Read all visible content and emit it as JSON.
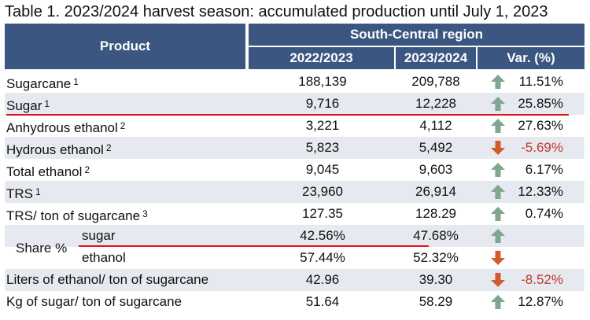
{
  "title": {
    "prefix": "Table 1.",
    "text": "2023/2024 harvest season: accumulated production until July 1, 2023"
  },
  "header": {
    "product": "Product",
    "region": "South-Central region",
    "col_a": "2022/2023",
    "col_b": "2023/2024",
    "col_var": "Var. (%)"
  },
  "share_label": "Share %",
  "colors": {
    "header_bg": "#3b5680",
    "up_arrow": "#7fa68f",
    "down_arrow": "#d25a2d",
    "negative_text": "#c0392b",
    "underline": "#d9161b"
  },
  "rows": [
    {
      "label": "Sugarcane",
      "sup": "1",
      "a": "188,139",
      "b": "209,788",
      "dir": "up",
      "var": "11.51%"
    },
    {
      "label": "Sugar",
      "sup": "1",
      "a": "9,716",
      "b": "12,228",
      "dir": "up",
      "var": "25.85%"
    },
    {
      "label": "Anhydrous ethanol",
      "sup": "2",
      "a": "3,221",
      "b": "4,112",
      "dir": "up",
      "var": "27.63%"
    },
    {
      "label": "Hydrous ethanol",
      "sup": "2",
      "a": "5,823",
      "b": "5,492",
      "dir": "down",
      "var": "-5.69%"
    },
    {
      "label": "Total ethanol",
      "sup": "2",
      "a": "9,045",
      "b": "9,603",
      "dir": "up",
      "var": "6.17%"
    },
    {
      "label": "TRS",
      "sup": "1",
      "a": "23,960",
      "b": "26,914",
      "dir": "up",
      "var": "12.33%"
    },
    {
      "label": "TRS/ ton of sugarcane",
      "sup": "3",
      "a": "127.35",
      "b": "128.29",
      "dir": "up",
      "var": "0.74%"
    },
    {
      "label": "sugar",
      "sup": "",
      "a": "42.56%",
      "b": "47.68%",
      "dir": "up",
      "var": ""
    },
    {
      "label": "ethanol",
      "sup": "",
      "a": "57.44%",
      "b": "52.32%",
      "dir": "down",
      "var": ""
    },
    {
      "label": "Liters of ethanol/ ton of sugarcane",
      "sup": "",
      "a": "42.96",
      "b": "39.30",
      "dir": "down",
      "var": "-8.52%"
    },
    {
      "label": "Kg of sugar/ ton of sugarcane",
      "sup": "",
      "a": "51.64",
      "b": "58.29",
      "dir": "up",
      "var": "12.87%"
    }
  ]
}
